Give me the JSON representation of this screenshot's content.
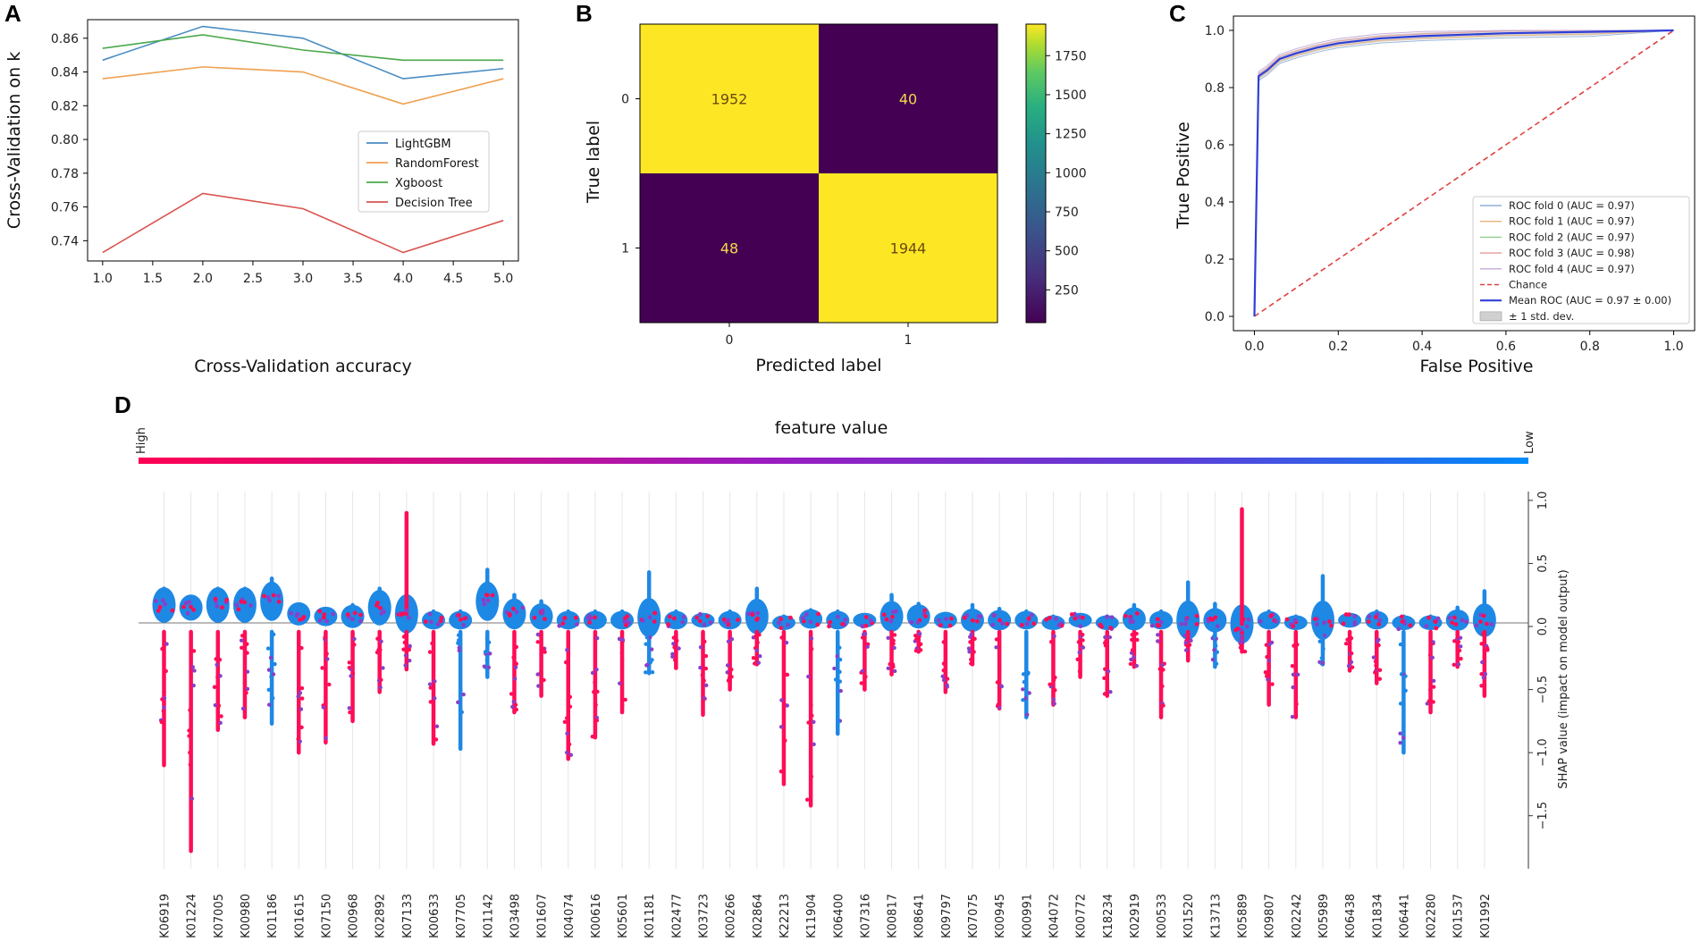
{
  "chart_data": [
    {
      "panel": "A",
      "type": "line",
      "title": "",
      "xlabel": "Cross-Validation accuracy",
      "ylabel": "Cross-Validation on k",
      "x": [
        1.0,
        2.0,
        3.0,
        4.0,
        5.0
      ],
      "xticks": [
        "1.0",
        "1.5",
        "2.0",
        "2.5",
        "3.0",
        "3.5",
        "4.0",
        "4.5",
        "5.0"
      ],
      "yticks": [
        "0.74",
        "0.76",
        "0.78",
        "0.80",
        "0.82",
        "0.84",
        "0.86"
      ],
      "xlim": [
        0.85,
        5.15
      ],
      "ylim": [
        0.728,
        0.871
      ],
      "legend_position": "center-right",
      "series": [
        {
          "name": "LightGBM",
          "color": "#4a8cc2",
          "values": [
            0.847,
            0.867,
            0.86,
            0.836,
            0.842
          ]
        },
        {
          "name": "RandomForest",
          "color": "#f0a050",
          "values": [
            0.836,
            0.843,
            0.84,
            0.821,
            0.836
          ]
        },
        {
          "name": "Xgboost",
          "color": "#4aa84a",
          "values": [
            0.854,
            0.862,
            0.853,
            0.847,
            0.847
          ]
        },
        {
          "name": "Decision Tree",
          "color": "#d9534f",
          "values": [
            0.733,
            0.768,
            0.759,
            0.733,
            0.752
          ]
        }
      ]
    },
    {
      "panel": "B",
      "type": "heatmap",
      "title": "",
      "xlabel": "Predicted label",
      "ylabel": "True label",
      "row_labels": [
        "0",
        "1"
      ],
      "col_labels": [
        "0",
        "1"
      ],
      "values": [
        [
          1952,
          40
        ],
        [
          48,
          1944
        ]
      ],
      "colorbar_ticks": [
        "250",
        "500",
        "750",
        "1000",
        "1250",
        "1500",
        "1750"
      ],
      "colorbar_range": [
        40,
        1952
      ]
    },
    {
      "panel": "C",
      "type": "line",
      "title": "",
      "xlabel": "False Positive",
      "ylabel": "True Positive",
      "xticks": [
        "0.0",
        "0.2",
        "0.4",
        "0.6",
        "0.8",
        "1.0"
      ],
      "yticks": [
        "0.0",
        "0.2",
        "0.4",
        "0.6",
        "0.8",
        "1.0"
      ],
      "xlim": [
        -0.05,
        1.05
      ],
      "ylim": [
        -0.05,
        1.05
      ],
      "legend_position": "lower-right",
      "legend": [
        "ROC fold 0 (AUC = 0.97)",
        "ROC fold 1 (AUC = 0.97)",
        "ROC fold 2 (AUC = 0.97)",
        "ROC fold 3 (AUC = 0.98)",
        "ROC fold 4 (AUC = 0.97)",
        "Chance",
        "Mean ROC (AUC = 0.97 ± 0.00)",
        "± 1 std. dev."
      ],
      "series": [
        {
          "name": "Mean ROC",
          "color": "#2f3fd6",
          "x": [
            0.0,
            0.01,
            0.03,
            0.06,
            0.1,
            0.15,
            0.2,
            0.3,
            0.4,
            0.6,
            0.8,
            1.0
          ],
          "values": [
            0.0,
            0.84,
            0.86,
            0.9,
            0.92,
            0.94,
            0.955,
            0.972,
            0.98,
            0.99,
            0.995,
            1.0
          ]
        },
        {
          "name": "Chance",
          "color": "#e04040",
          "x": [
            0.0,
            1.0
          ],
          "values": [
            0.0,
            1.0
          ]
        }
      ],
      "fold_colors": [
        "#8fb0d8",
        "#e9b27a",
        "#8fcf8f",
        "#e69a9a",
        "#c4a9d9"
      ]
    },
    {
      "panel": "D",
      "type": "scatter",
      "title": "feature value",
      "colorbar_high": "High",
      "colorbar_low": "Low",
      "ylabel": "SHAP value (impact on model output)",
      "yticks": [
        "1.0",
        "0.5",
        "0.0",
        "−0.5",
        "−1.0",
        "−1.5"
      ],
      "ylim": [
        -1.92,
        1.07
      ],
      "features": [
        "K06919",
        "K01224",
        "K07005",
        "K00980",
        "K01186",
        "K01615",
        "K07150",
        "K00968",
        "K02892",
        "K07133",
        "K00633",
        "K07705",
        "K01142",
        "K03498",
        "K01607",
        "K04074",
        "K00616",
        "K05601",
        "K01181",
        "K02477",
        "K03723",
        "K00266",
        "K02864",
        "K22213",
        "K11904",
        "K06400",
        "K07316",
        "K00817",
        "K08641",
        "K09797",
        "K07075",
        "K00945",
        "K00991",
        "K04072",
        "K00772",
        "K18234",
        "K02919",
        "K00533",
        "K01520",
        "K13713",
        "K05889",
        "K09807",
        "K02242",
        "K05989",
        "K06438",
        "K01834",
        "K06441",
        "K02280",
        "K01537",
        "K01992"
      ],
      "shap_min": [
        -1.1,
        -1.78,
        -0.82,
        -0.72,
        -0.77,
        -1.0,
        -0.92,
        -0.75,
        -0.52,
        -0.34,
        -0.93,
        -0.97,
        -0.4,
        -0.68,
        -0.55,
        -1.05,
        -0.88,
        -0.68,
        -0.37,
        -0.33,
        -0.7,
        -0.5,
        -0.3,
        -1.25,
        -1.42,
        -0.85,
        -0.5,
        -0.38,
        -0.2,
        -0.52,
        -0.3,
        -0.65,
        -0.72,
        -0.62,
        -0.4,
        -0.55,
        -0.32,
        -0.72,
        -0.27,
        -0.32,
        -0.2,
        -0.62,
        -0.72,
        -0.3,
        -0.35,
        -0.45,
        -1.0,
        -0.68,
        -0.32,
        -0.55
      ],
      "shap_max": [
        0.3,
        0.2,
        0.3,
        0.3,
        0.38,
        0.17,
        0.13,
        0.17,
        0.3,
        0.9,
        0.12,
        0.12,
        0.45,
        0.25,
        0.2,
        0.12,
        0.12,
        0.12,
        0.43,
        0.12,
        0.08,
        0.12,
        0.3,
        0.08,
        0.13,
        0.12,
        0.08,
        0.25,
        0.18,
        0.1,
        0.17,
        0.14,
        0.12,
        0.08,
        0.08,
        0.08,
        0.17,
        0.12,
        0.35,
        0.18,
        0.93,
        0.12,
        0.08,
        0.4,
        0.08,
        0.12,
        0.08,
        0.08,
        0.15,
        0.28
      ],
      "shap_mode": [
        0.17,
        0.15,
        0.17,
        0.17,
        0.2,
        0.1,
        0.08,
        0.08,
        0.15,
        0.1,
        0.05,
        0.05,
        0.2,
        0.1,
        0.08,
        0.05,
        0.05,
        0.05,
        0.07,
        0.05,
        0.05,
        0.05,
        0.08,
        0.03,
        0.06,
        0.05,
        0.05,
        0.08,
        0.08,
        0.05,
        0.05,
        0.05,
        0.05,
        0.03,
        0.05,
        0.03,
        0.06,
        0.05,
        0.05,
        0.05,
        0.02,
        0.05,
        0.03,
        0.05,
        0.05,
        0.05,
        0.03,
        0.03,
        0.05,
        0.05
      ]
    }
  ]
}
